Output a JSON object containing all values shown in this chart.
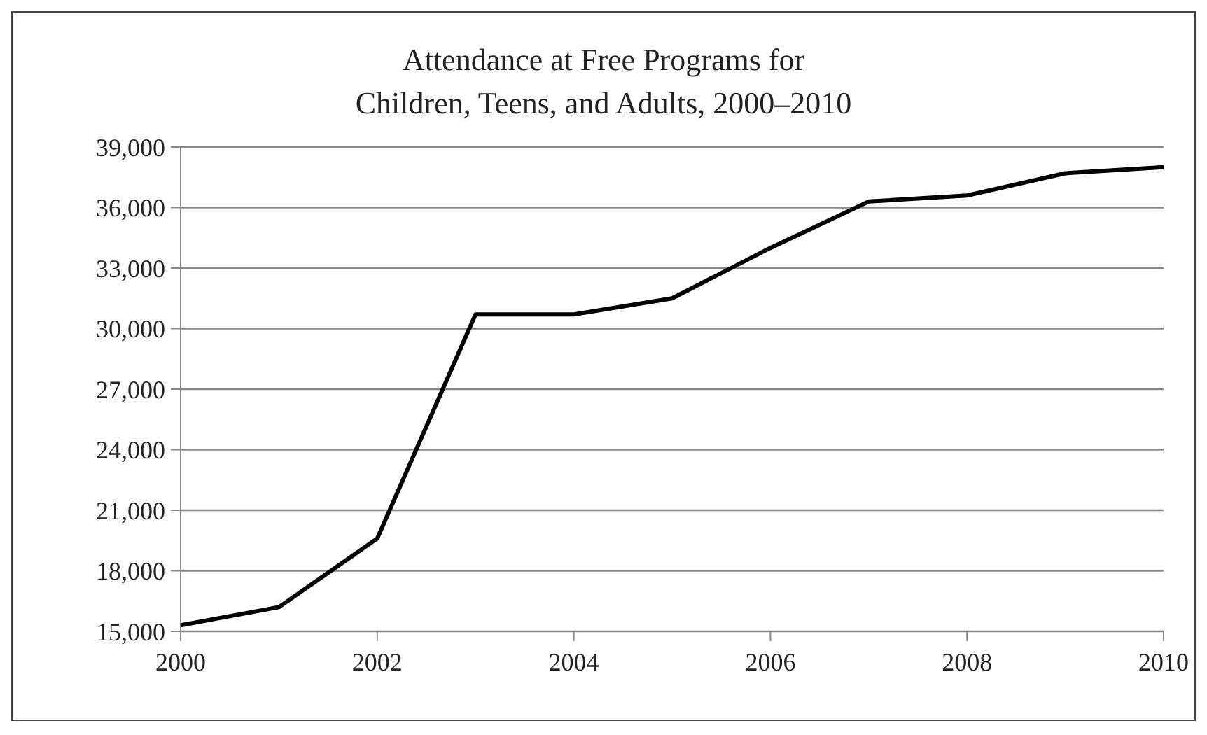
{
  "chart_data": {
    "type": "line",
    "title": "Attendance at Free Programs for\nChildren, Teens, and Adults, 2000–2010",
    "x": [
      2000,
      2001,
      2002,
      2003,
      2004,
      2005,
      2006,
      2007,
      2008,
      2009,
      2010
    ],
    "series": [
      {
        "color": "#000000",
        "values": [
          15300,
          16200,
          19600,
          30700,
          30700,
          31500,
          34000,
          36300,
          36600,
          37700,
          38000
        ]
      }
    ],
    "xlim": [
      2000,
      2010
    ],
    "xticks": [
      2000,
      2002,
      2004,
      2006,
      2008,
      2010
    ],
    "ylim": [
      15000,
      39000
    ],
    "yticks": [
      {
        "value": 15000,
        "label": "15,000"
      },
      {
        "value": 18000,
        "label": "18,000"
      },
      {
        "value": 21000,
        "label": "21,000"
      },
      {
        "value": 24000,
        "label": "24,000"
      },
      {
        "value": 27000,
        "label": "27,000"
      },
      {
        "value": 30000,
        "label": "30,000"
      },
      {
        "value": 33000,
        "label": "33,000"
      },
      {
        "value": 36000,
        "label": "36,000"
      },
      {
        "value": 39000,
        "label": "39,000"
      }
    ],
    "grid": "y",
    "legend": false,
    "marker": "none",
    "line_style": "solid"
  }
}
